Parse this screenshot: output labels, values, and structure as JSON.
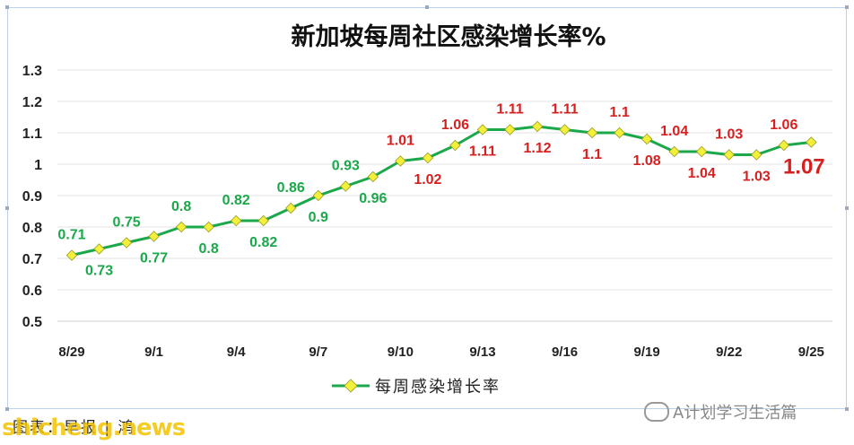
{
  "chart_data": {
    "type": "line",
    "title": "新加坡每周社区感染增长率%",
    "xlabel": "",
    "ylabel": "",
    "ylim": [
      0.5,
      1.3
    ],
    "yticks": [
      "0.5",
      "0.6",
      "0.7",
      "0.8",
      "0.9",
      "1",
      "1.1",
      "1.2",
      "1.3"
    ],
    "x_tick_labels": [
      "8/29",
      "9/1",
      "9/4",
      "9/7",
      "9/10",
      "9/13",
      "9/16",
      "9/19",
      "9/22",
      "9/25"
    ],
    "x": [
      "8/29",
      "8/30",
      "8/31",
      "9/1",
      "9/2",
      "9/3",
      "9/4",
      "9/5",
      "9/6",
      "9/7",
      "9/8",
      "9/9",
      "9/10",
      "9/11",
      "9/12",
      "9/13",
      "9/14",
      "9/15",
      "9/16",
      "9/17",
      "9/18",
      "9/19",
      "9/20",
      "9/21",
      "9/22",
      "9/23",
      "9/24",
      "9/25"
    ],
    "series": [
      {
        "name": "每周感染增长率",
        "values": [
          0.71,
          0.73,
          0.75,
          0.77,
          0.8,
          0.8,
          0.82,
          0.82,
          0.86,
          0.9,
          0.93,
          0.96,
          1.01,
          1.02,
          1.06,
          1.11,
          1.11,
          1.12,
          1.11,
          1.1,
          1.1,
          1.08,
          1.04,
          1.04,
          1.03,
          1.03,
          1.06,
          1.07
        ],
        "labels": [
          "0.71",
          "0.73",
          "0.75",
          "0.77",
          "0.8",
          "0.8",
          "0.82",
          "0.82",
          "0.86",
          "0.9",
          "0.93",
          "0.96",
          "1.01",
          "1.02",
          "1.06",
          "1.11",
          "1.11",
          "1.12",
          "1.11",
          "1.1",
          "1.1",
          "1.08",
          "1.04",
          "1.04",
          "1.03",
          "1.03",
          "1.06",
          "1.07"
        ]
      }
    ],
    "grid": true,
    "legend_position": "bottom",
    "colors": {
      "line": "#1aa84a",
      "marker": "#f2f03a",
      "label_below1": "#1aa84a",
      "label_above1": "#d62020"
    }
  },
  "footer": {
    "source": "图表：早报 | 鸿",
    "watermark": "shicheng.news",
    "wechat": "A计划学习生活篇"
  }
}
